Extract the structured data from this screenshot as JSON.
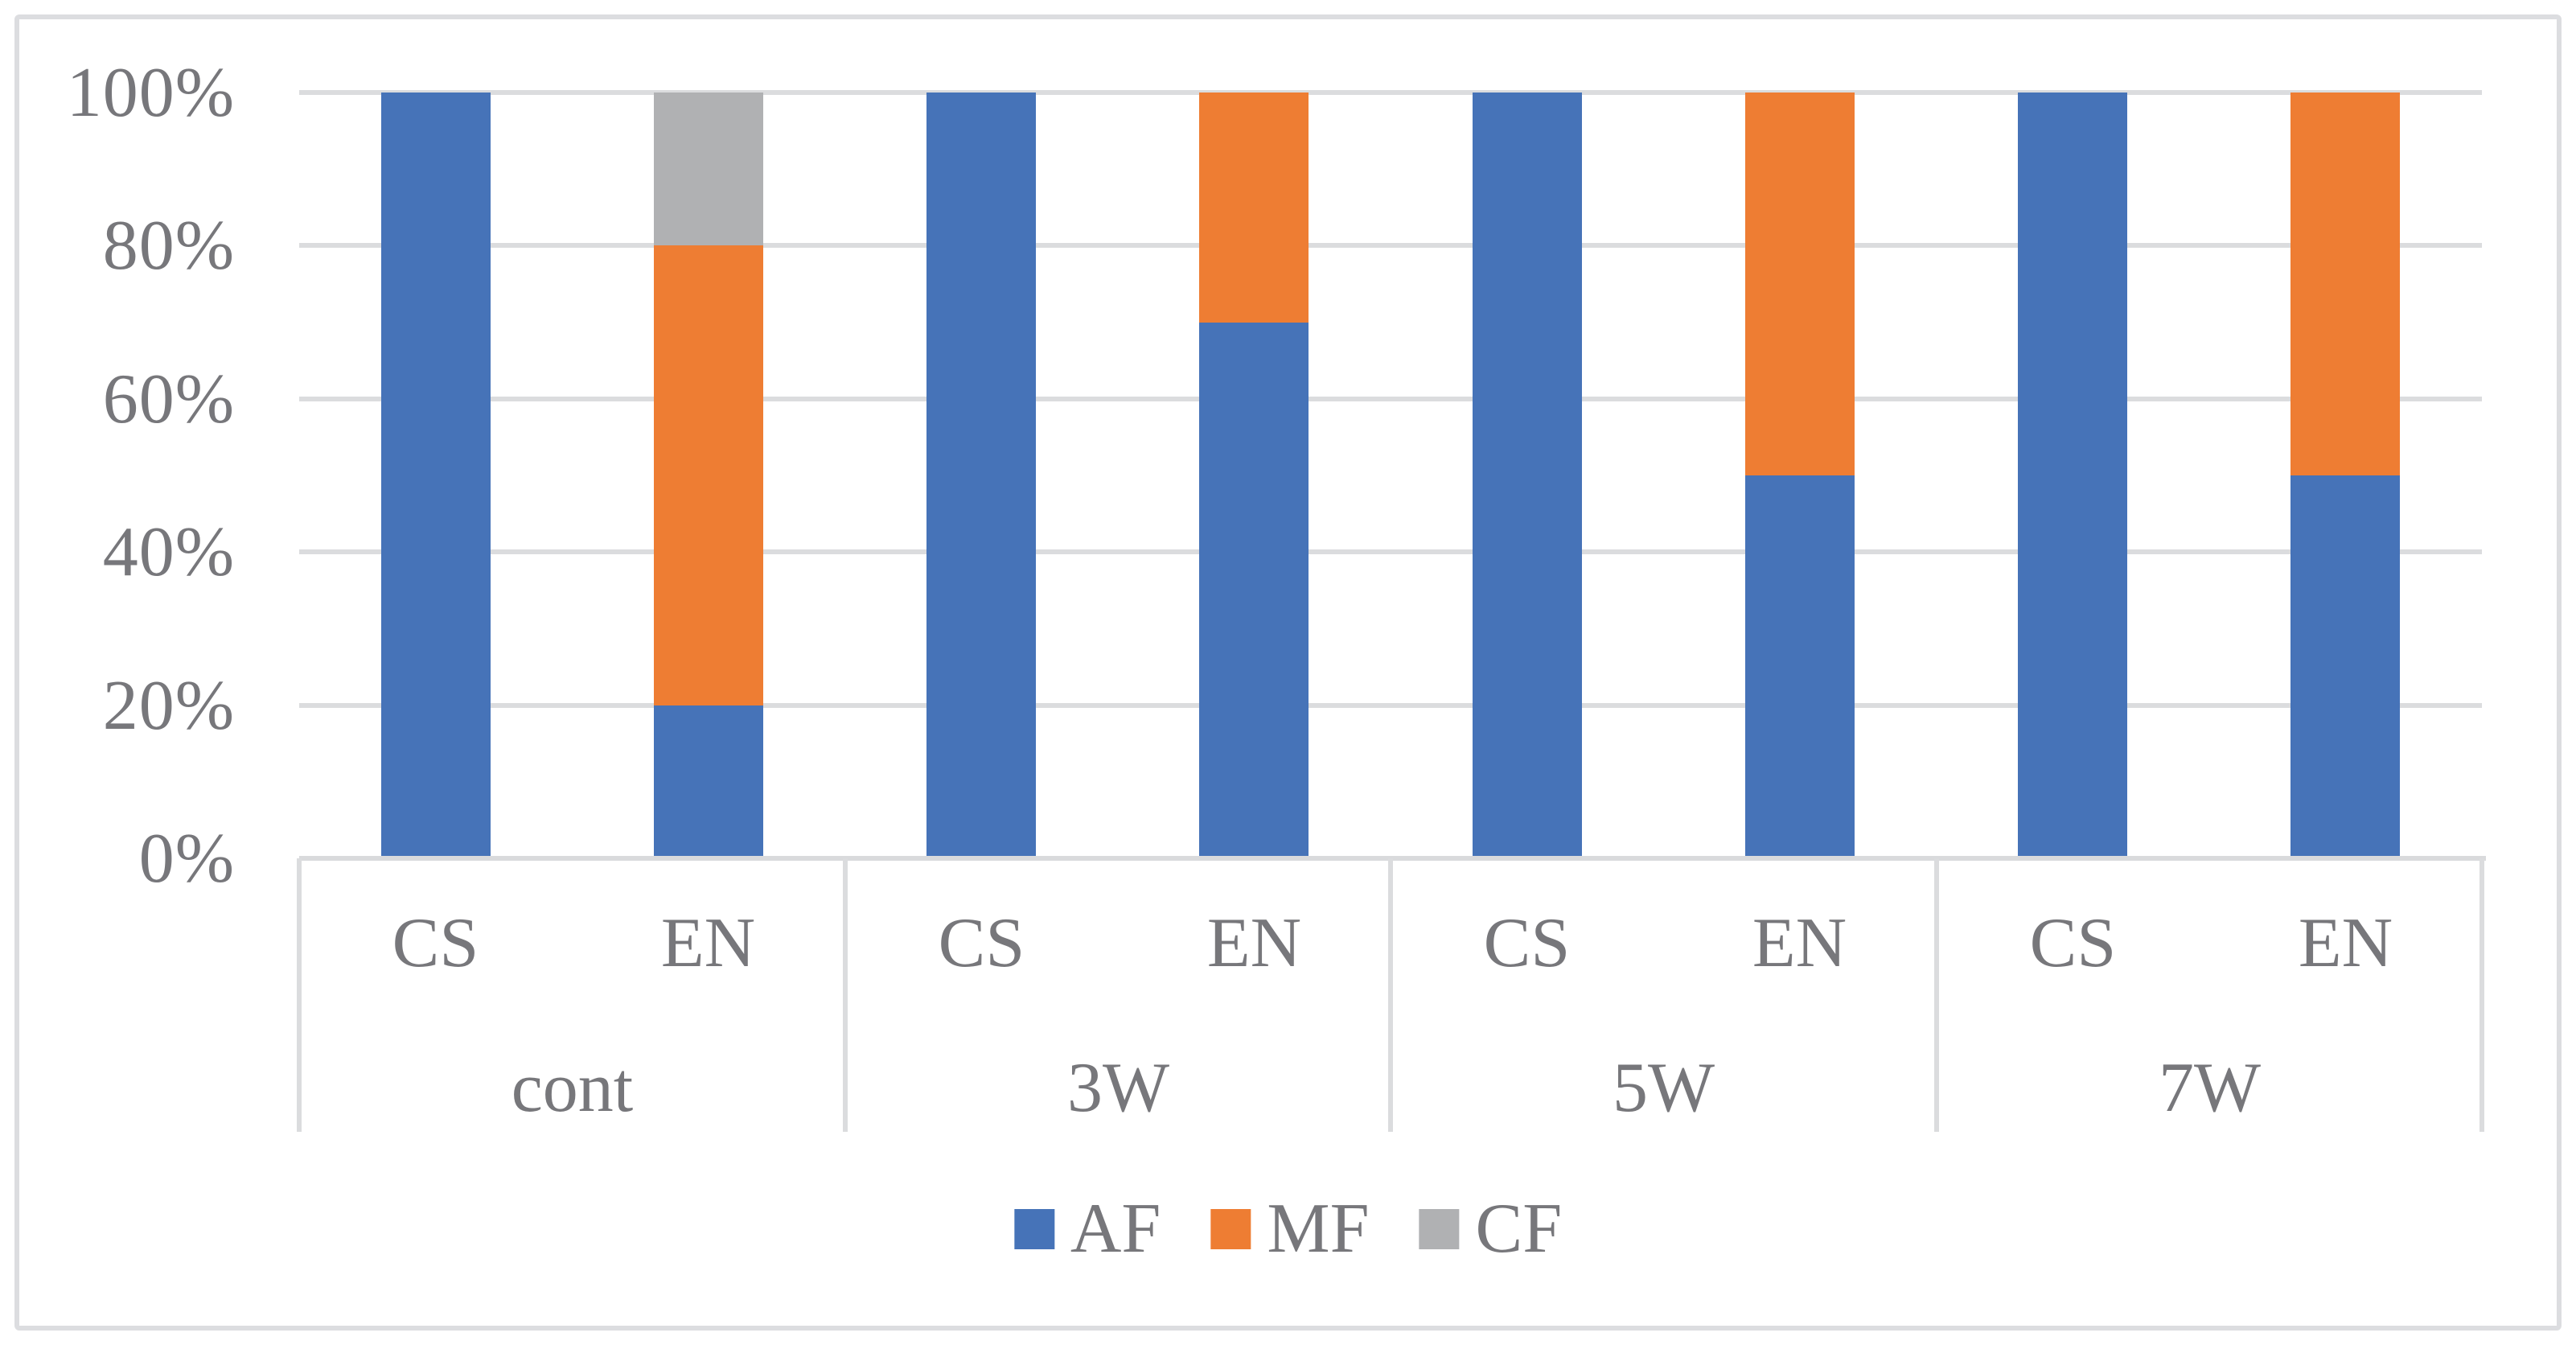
{
  "chart_data": {
    "type": "bar",
    "subtype": "stacked-100-percent-column",
    "title": "",
    "grid": true,
    "y_axis": {
      "min": 0,
      "max": 100,
      "step": 20,
      "tick_labels": [
        "0%",
        "20%",
        "40%",
        "60%",
        "80%",
        "100%"
      ],
      "unit": "%"
    },
    "x_axis": {
      "groups": [
        "cont",
        "3W",
        "5W",
        "7W"
      ],
      "sub_categories": [
        "CS",
        "EN"
      ]
    },
    "categories": [
      "cont CS",
      "cont EN",
      "3W CS",
      "3W EN",
      "5W CS",
      "5W EN",
      "7W CS",
      "7W EN"
    ],
    "series": [
      {
        "name": "AF",
        "color": "#4673b8",
        "values": [
          100,
          20,
          100,
          70,
          100,
          50,
          100,
          50
        ]
      },
      {
        "name": "MF",
        "color": "#ee7d33",
        "values": [
          0,
          60,
          0,
          30,
          0,
          50,
          0,
          50
        ]
      },
      {
        "name": "CF",
        "color": "#b0b1b3",
        "values": [
          0,
          20,
          0,
          0,
          0,
          0,
          0,
          0
        ]
      }
    ],
    "legend": {
      "position": "bottom",
      "entries": [
        {
          "label": "AF",
          "color": "#4673b8"
        },
        {
          "label": "MF",
          "color": "#ee7d33"
        },
        {
          "label": "CF",
          "color": "#b0b1b3"
        }
      ]
    }
  },
  "style_colors": {
    "gridline": "#dbdcde",
    "axis_text": "#77777b",
    "figure_border": "#dcdde0",
    "background": "#ffffff"
  }
}
